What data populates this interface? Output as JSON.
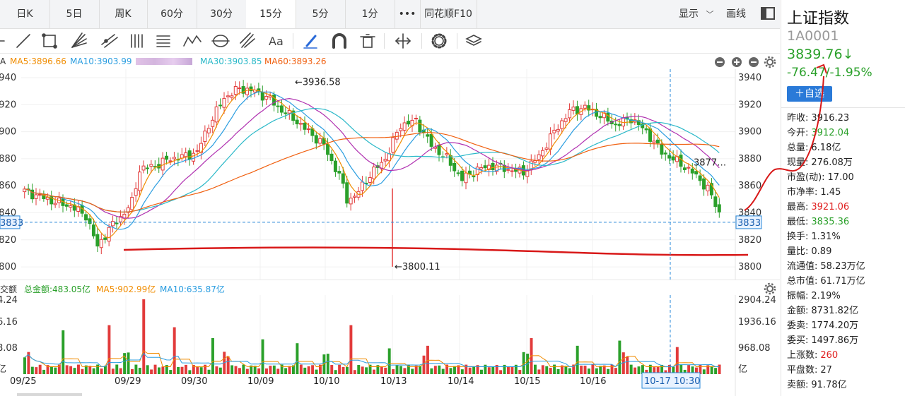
{
  "period_tabs": [
    {
      "label": "日K",
      "active": false
    },
    {
      "label": "5日",
      "active": false
    },
    {
      "label": "周K",
      "active": false
    },
    {
      "label": "60分",
      "active": false
    },
    {
      "label": "30分",
      "active": false
    },
    {
      "label": "15分",
      "active": true
    },
    {
      "label": "5分",
      "active": false
    },
    {
      "label": "1分",
      "active": false
    },
    {
      "label": "•••",
      "active": false
    },
    {
      "label": "同花顺F10",
      "active": false
    }
  ],
  "display_label": "显示",
  "draw_label": "画线",
  "toolbar_icons": [
    "cursor-icon",
    "line-icon",
    "rect-icon",
    "fan-icon",
    "channel-icon",
    "parallel-icon",
    "fib-icon",
    "wave-icon",
    "cycle-icon",
    "pitchfork-icon",
    "text-icon",
    "pen-icon",
    "magnet-icon",
    "trash-icon",
    "measure-icon",
    "gear-icon",
    "layers-icon"
  ],
  "text_tool_label": "Aa",
  "ma_legend": {
    "prefix": "A",
    "ma5": "MA5:3896.66",
    "ma10": "MA10:3903.99",
    "ma30": "MA30:3903.85",
    "ma60": "MA60:3893.26",
    "colors": {
      "ma5": "#f08c00",
      "ma10": "#2a9de0",
      "ma20": "#b030b0",
      "ma30": "#29b8c8",
      "ma60": "#f06010"
    }
  },
  "vol_legend": {
    "prefix": "交额",
    "total": "总金额:483.05亿",
    "ma5": "MA5:902.99亿",
    "ma10": "MA10:635.87亿"
  },
  "side": {
    "name": "上证指数",
    "code": "1A0001",
    "price": "3839.76↓",
    "change": "-76.47/-1.95%",
    "add_btn": "＋自选",
    "rows": [
      {
        "label": "昨收:",
        "value": "3916.23",
        "color": "#222"
      },
      {
        "label": "今开:",
        "value": "3912.04",
        "color": "#2aa02a"
      },
      {
        "label": "总量:",
        "value": "6.18亿",
        "color": "#222"
      },
      {
        "label": "现量:",
        "value": "276.08万",
        "color": "#222"
      },
      {
        "label": "市盈(动):",
        "value": "17.00",
        "color": "#222"
      },
      {
        "label": "市净率:",
        "value": "1.45",
        "color": "#222"
      },
      {
        "label": "最高:",
        "value": "3921.06",
        "color": "#e02020"
      },
      {
        "label": "最低:",
        "value": "3835.36",
        "color": "#2aa02a"
      },
      {
        "label": "换手:",
        "value": "1.31%",
        "color": "#222"
      },
      {
        "label": "量比:",
        "value": "0.89",
        "color": "#222"
      },
      {
        "label": "流通值:",
        "value": "58.23万亿",
        "color": "#222"
      },
      {
        "label": "总市值:",
        "value": "61.71万亿",
        "color": "#222"
      },
      {
        "label": "振幅:",
        "value": "2.19%",
        "color": "#222"
      },
      {
        "label": "金额:",
        "value": "8731.82亿",
        "color": "#222"
      },
      {
        "label": "委卖:",
        "value": "1774.20万",
        "color": "#222"
      },
      {
        "label": "委买:",
        "value": "1497.86万",
        "color": "#222"
      },
      {
        "label": "上涨数:",
        "value": "260",
        "color": "#e02020"
      },
      {
        "label": "平盘数:",
        "value": "27",
        "color": "#222"
      },
      {
        "label": "卖额:",
        "value": "91.78亿",
        "color": "#222"
      }
    ]
  },
  "chart_data": {
    "type": "candlestick",
    "y_ticks": [
      "3940",
      "3920",
      "3900",
      "3880",
      "3860",
      "3840",
      "3820",
      "3800"
    ],
    "left_ticks": [
      "3940",
      "3920",
      "3900",
      "3880",
      "3860",
      "3840",
      "3820",
      "3800"
    ],
    "ylim": [
      3795,
      3945
    ],
    "crosshair_price": "3833",
    "crosshair_date": "10-17 10:30",
    "annot_high": "←3936.58",
    "annot_low": "←3800.11",
    "annot_last": "3877…",
    "x_dates": [
      "09/25",
      "09/29",
      "09/30",
      "10/09",
      "10/10",
      "10/13",
      "10/14",
      "10/15",
      "10/16",
      "10-17 10:30"
    ],
    "vol_ticks_right": [
      "2904.24",
      "1936.16",
      "968.08",
      "亿"
    ],
    "vol_ticks_left": [
      "4.24",
      "6.16",
      "8.08",
      "亿"
    ],
    "vol_max": 2904.24,
    "handdrawn_line_price": 3810,
    "colors": {
      "up": "#e23b3b",
      "down": "#2aa02a",
      "crosshair": "#2a88d8",
      "handdrawn": "#d81818"
    },
    "keys": [
      [
        0,
        3856
      ],
      [
        4,
        3852
      ],
      [
        8,
        3848
      ],
      [
        12,
        3845
      ],
      [
        16,
        3838
      ],
      [
        19,
        3815
      ],
      [
        22,
        3828
      ],
      [
        26,
        3840
      ],
      [
        28,
        3848
      ],
      [
        30,
        3872
      ],
      [
        34,
        3875
      ],
      [
        38,
        3880
      ],
      [
        42,
        3882
      ],
      [
        45,
        3885
      ],
      [
        48,
        3905
      ],
      [
        52,
        3925
      ],
      [
        56,
        3932
      ],
      [
        60,
        3930
      ],
      [
        64,
        3924
      ],
      [
        66,
        3918
      ],
      [
        70,
        3910
      ],
      [
        74,
        3900
      ],
      [
        78,
        3890
      ],
      [
        80,
        3878
      ],
      [
        82,
        3868
      ],
      [
        84,
        3850
      ],
      [
        86,
        3852
      ],
      [
        90,
        3868
      ],
      [
        94,
        3880
      ],
      [
        98,
        3905
      ],
      [
        102,
        3908
      ],
      [
        106,
        3890
      ],
      [
        110,
        3880
      ],
      [
        114,
        3865
      ],
      [
        118,
        3872
      ],
      [
        122,
        3875
      ],
      [
        126,
        3872
      ],
      [
        130,
        3870
      ],
      [
        134,
        3882
      ],
      [
        138,
        3900
      ],
      [
        142,
        3915
      ],
      [
        146,
        3918
      ],
      [
        150,
        3912
      ],
      [
        154,
        3905
      ],
      [
        158,
        3910
      ],
      [
        162,
        3900
      ],
      [
        166,
        3885
      ],
      [
        170,
        3878
      ],
      [
        174,
        3870
      ],
      [
        178,
        3858
      ],
      [
        181,
        3840
      ]
    ],
    "vol_spikes": [
      [
        20,
        1700
      ],
      [
        44,
        1900
      ],
      [
        62,
        2904
      ],
      [
        78,
        1820
      ],
      [
        98,
        1400
      ],
      [
        124,
        1350
      ],
      [
        142,
        1200
      ],
      [
        170,
        1900
      ],
      [
        190,
        1000
      ],
      [
        210,
        1100
      ],
      [
        264,
        1400
      ],
      [
        288,
        1100
      ],
      [
        310,
        1300
      ],
      [
        340,
        1050
      ],
      [
        366,
        1450
      ]
    ]
  }
}
